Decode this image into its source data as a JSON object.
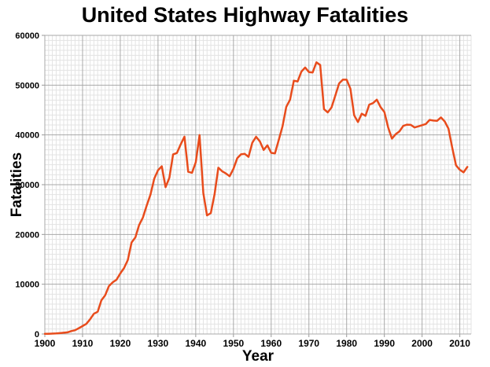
{
  "page": {
    "background": "#ffffff"
  },
  "chart_data": {
    "type": "line",
    "title": "United States Highway Fatalities",
    "xlabel": "Year",
    "ylabel": "Fatalities",
    "x_range": [
      1900,
      2013
    ],
    "y_range": [
      0,
      60000
    ],
    "x_ticks": [
      1900,
      1910,
      1920,
      1930,
      1940,
      1950,
      1960,
      1970,
      1980,
      1990,
      2000,
      2010
    ],
    "y_ticks": [
      0,
      10000,
      20000,
      30000,
      40000,
      50000,
      60000
    ],
    "x_minor_step": 1,
    "y_minor_step": 1000,
    "grid": "major+minor",
    "legend": "none",
    "colors": {
      "line": "#E84C1C",
      "grid_major": "#a9a9a9",
      "grid_minor": "#e3e3e3",
      "tick": "#999999",
      "text": "#000000"
    },
    "series": [
      {
        "name": "Fatalities",
        "points": [
          [
            1900,
            36
          ],
          [
            1901,
            54
          ],
          [
            1902,
            79
          ],
          [
            1903,
            117
          ],
          [
            1904,
            172
          ],
          [
            1905,
            252
          ],
          [
            1906,
            338
          ],
          [
            1907,
            581
          ],
          [
            1908,
            751
          ],
          [
            1909,
            1174
          ],
          [
            1910,
            1599
          ],
          [
            1911,
            2043
          ],
          [
            1912,
            2968
          ],
          [
            1913,
            4079
          ],
          [
            1914,
            4468
          ],
          [
            1915,
            6779
          ],
          [
            1916,
            7766
          ],
          [
            1917,
            9630
          ],
          [
            1918,
            10390
          ],
          [
            1919,
            10896
          ],
          [
            1920,
            12155
          ],
          [
            1921,
            13253
          ],
          [
            1922,
            14859
          ],
          [
            1923,
            18400
          ],
          [
            1924,
            19400
          ],
          [
            1925,
            21900
          ],
          [
            1926,
            23400
          ],
          [
            1927,
            25800
          ],
          [
            1928,
            28000
          ],
          [
            1929,
            31200
          ],
          [
            1930,
            32900
          ],
          [
            1931,
            33700
          ],
          [
            1932,
            29500
          ],
          [
            1933,
            31363
          ],
          [
            1934,
            36101
          ],
          [
            1935,
            36369
          ],
          [
            1936,
            38089
          ],
          [
            1937,
            39643
          ],
          [
            1938,
            32582
          ],
          [
            1939,
            32386
          ],
          [
            1940,
            34501
          ],
          [
            1941,
            39969
          ],
          [
            1942,
            28309
          ],
          [
            1943,
            23823
          ],
          [
            1944,
            24282
          ],
          [
            1945,
            28076
          ],
          [
            1946,
            33411
          ],
          [
            1947,
            32697
          ],
          [
            1948,
            32259
          ],
          [
            1949,
            31701
          ],
          [
            1950,
            33186
          ],
          [
            1951,
            35309
          ],
          [
            1952,
            36088
          ],
          [
            1953,
            36190
          ],
          [
            1954,
            35586
          ],
          [
            1955,
            38426
          ],
          [
            1956,
            39628
          ],
          [
            1957,
            38702
          ],
          [
            1958,
            36981
          ],
          [
            1959,
            37910
          ],
          [
            1960,
            36399
          ],
          [
            1961,
            36285
          ],
          [
            1962,
            38980
          ],
          [
            1963,
            41723
          ],
          [
            1964,
            45645
          ],
          [
            1965,
            47089
          ],
          [
            1966,
            50894
          ],
          [
            1967,
            50724
          ],
          [
            1968,
            52725
          ],
          [
            1969,
            53543
          ],
          [
            1970,
            52627
          ],
          [
            1971,
            52542
          ],
          [
            1972,
            54589
          ],
          [
            1973,
            54052
          ],
          [
            1974,
            45196
          ],
          [
            1975,
            44525
          ],
          [
            1976,
            45523
          ],
          [
            1977,
            47878
          ],
          [
            1978,
            50331
          ],
          [
            1979,
            51093
          ],
          [
            1980,
            51091
          ],
          [
            1981,
            49301
          ],
          [
            1982,
            43945
          ],
          [
            1983,
            42589
          ],
          [
            1984,
            44257
          ],
          [
            1985,
            43825
          ],
          [
            1986,
            46087
          ],
          [
            1987,
            46390
          ],
          [
            1988,
            47087
          ],
          [
            1989,
            45582
          ],
          [
            1990,
            44599
          ],
          [
            1991,
            41508
          ],
          [
            1992,
            39250
          ],
          [
            1993,
            40150
          ],
          [
            1994,
            40716
          ],
          [
            1995,
            41817
          ],
          [
            1996,
            42065
          ],
          [
            1997,
            42013
          ],
          [
            1998,
            41501
          ],
          [
            1999,
            41717
          ],
          [
            2000,
            41945
          ],
          [
            2001,
            42196
          ],
          [
            2002,
            43005
          ],
          [
            2003,
            42884
          ],
          [
            2004,
            42836
          ],
          [
            2005,
            43510
          ],
          [
            2006,
            42708
          ],
          [
            2007,
            41259
          ],
          [
            2008,
            37423
          ],
          [
            2009,
            33883
          ],
          [
            2010,
            32999
          ],
          [
            2011,
            32479
          ],
          [
            2012,
            33561
          ]
        ]
      }
    ]
  }
}
